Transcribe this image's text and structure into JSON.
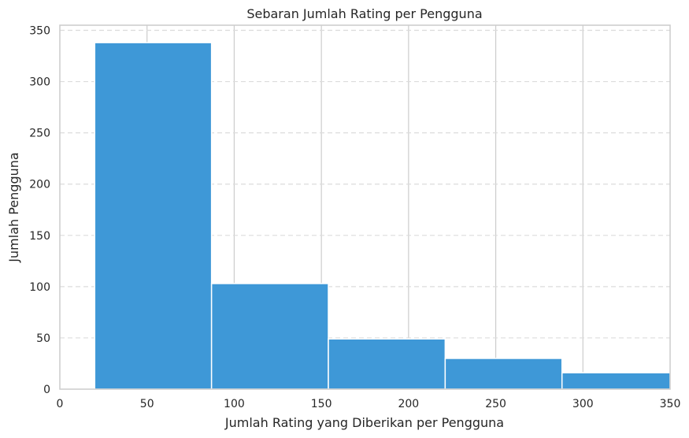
{
  "chart_data": {
    "type": "bar",
    "title": "Sebaran Jumlah Rating per Pengguna",
    "xlabel": "Jumlah Rating yang Diberikan per Pengguna",
    "ylabel": "Jumlah Pengguna",
    "xlim": [
      0,
      350
    ],
    "ylim": [
      0,
      355
    ],
    "xticks": [
      0,
      50,
      100,
      150,
      200,
      250,
      300,
      350
    ],
    "yticks": [
      0,
      50,
      100,
      150,
      200,
      250,
      300,
      350
    ],
    "bins": [
      {
        "start": 20,
        "end": 87,
        "count": 338
      },
      {
        "start": 87,
        "end": 154,
        "count": 103
      },
      {
        "start": 154,
        "end": 221,
        "count": 49
      },
      {
        "start": 221,
        "end": 288,
        "count": 30
      },
      {
        "start": 288,
        "end": 355,
        "count": 16
      }
    ],
    "bar_color": "#3e98d7",
    "grid": true
  }
}
